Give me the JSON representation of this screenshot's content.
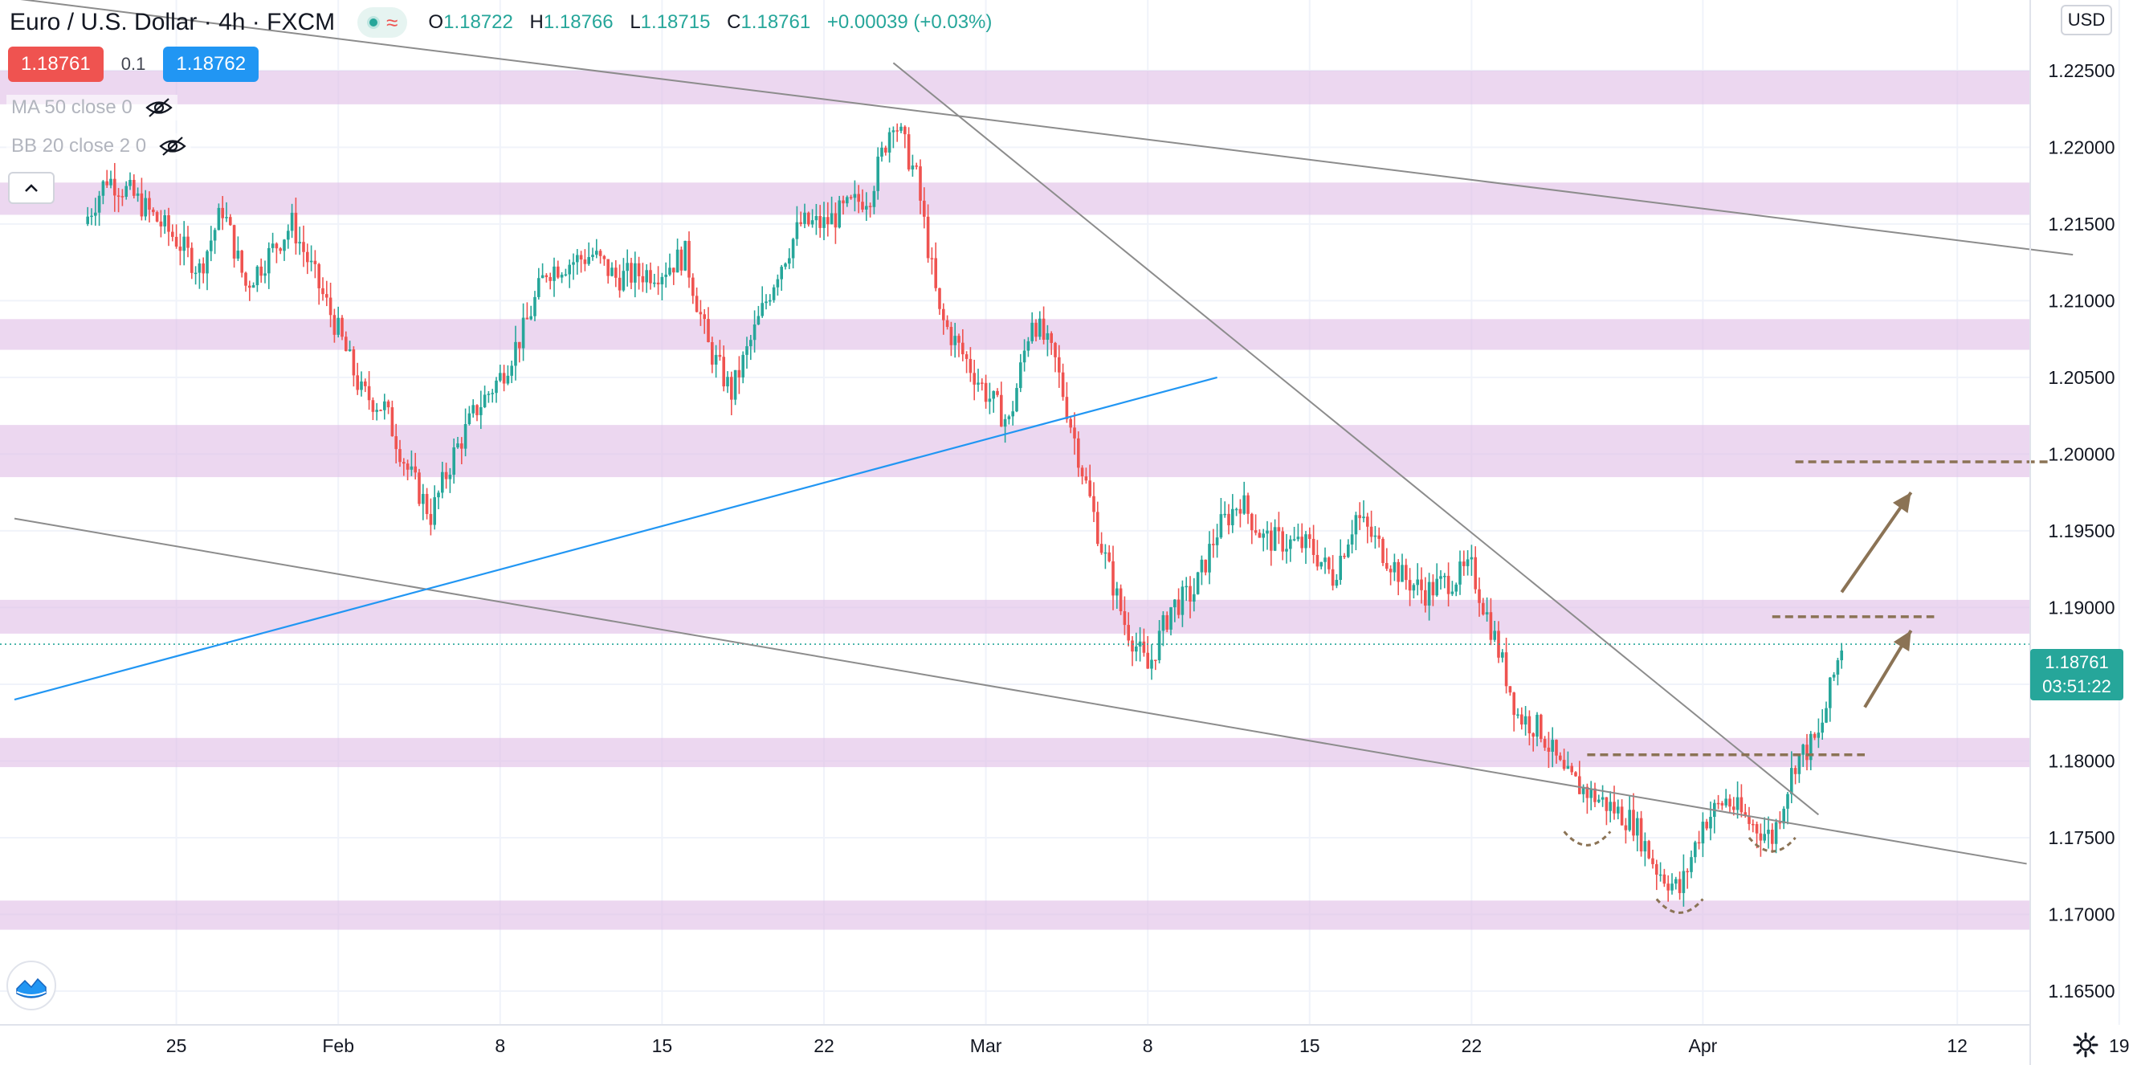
{
  "header": {
    "symbol": "Euro / U.S. Dollar",
    "interval": "4h",
    "exchange": "FXCM",
    "ohlc": {
      "o_label": "O",
      "o": "1.18722",
      "h_label": "H",
      "h": "1.18766",
      "l_label": "L",
      "l": "1.18715",
      "c_label": "C",
      "c": "1.18761",
      "change": "+0.00039 (+0.03%)"
    }
  },
  "trade": {
    "sell_price": "1.18761",
    "spread": "0.1",
    "buy_price": "1.18762"
  },
  "indicators": [
    {
      "label": "MA 50 close 0"
    },
    {
      "label": "BB 20 close 2 0"
    }
  ],
  "currency_button": "USD",
  "last_price": {
    "price": "1.18761",
    "countdown": "03:51:22"
  },
  "icons": {
    "visibility": "eye-off-icon",
    "collapse": "chevron-up-icon",
    "logo": "tradingview-logo-icon",
    "settings": "gear-icon",
    "status": "market-status-icon",
    "wave": "wave-icon"
  },
  "colors": {
    "up": "#26a69a",
    "down": "#ef5350",
    "zone": "#e1bee7",
    "trendline": "#8c8c8c",
    "blue_line": "#2196f3",
    "annotation": "#8b7355"
  },
  "chart_data": {
    "type": "candlestick",
    "title": "Euro / U.S. Dollar",
    "ylim": [
      1.1628,
      1.2296
    ],
    "y_ticks": [
      "1.22500",
      "1.22000",
      "1.21500",
      "1.21000",
      "1.20500",
      "1.20000",
      "1.19500",
      "1.19000",
      "1.18500",
      "1.18000",
      "1.17500",
      "1.17000",
      "1.16500"
    ],
    "x_ticks": [
      {
        "label": "25",
        "date": "2021-01-25"
      },
      {
        "label": "Feb",
        "date": "2021-02-01"
      },
      {
        "label": "8",
        "date": "2021-02-08"
      },
      {
        "label": "15",
        "date": "2021-02-15"
      },
      {
        "label": "22",
        "date": "2021-02-22"
      },
      {
        "label": "Mar",
        "date": "2021-03-01"
      },
      {
        "label": "8",
        "date": "2021-03-08"
      },
      {
        "label": "15",
        "date": "2021-03-15"
      },
      {
        "label": "22",
        "date": "2021-03-22"
      },
      {
        "label": "Apr",
        "date": "2021-04-01"
      },
      {
        "label": "12",
        "date": "2021-04-12"
      },
      {
        "label": "19",
        "date": "2021-04-19"
      }
    ],
    "grid": true,
    "price_path": [
      [
        "2021-01-21",
        1.215
      ],
      [
        "2021-01-22",
        1.218
      ],
      [
        "2021-01-23",
        1.217
      ],
      [
        "2021-01-25",
        1.214
      ],
      [
        "2021-01-26",
        1.212
      ],
      [
        "2021-01-27",
        1.216
      ],
      [
        "2021-01-28",
        1.211
      ],
      [
        "2021-01-29",
        1.213
      ],
      [
        "2021-01-30",
        1.215
      ],
      [
        "2021-02-01",
        1.208
      ],
      [
        "2021-02-02",
        1.204
      ],
      [
        "2021-02-03",
        1.203
      ],
      [
        "2021-02-04",
        1.199
      ],
      [
        "2021-02-05",
        1.196
      ],
      [
        "2021-02-06",
        1.2
      ],
      [
        "2021-02-07",
        1.203
      ],
      [
        "2021-02-08",
        1.205
      ],
      [
        "2021-02-09",
        1.208
      ],
      [
        "2021-02-10",
        1.212
      ],
      [
        "2021-02-11",
        1.2125
      ],
      [
        "2021-02-12",
        1.213
      ],
      [
        "2021-02-13",
        1.2115
      ],
      [
        "2021-02-15",
        1.212
      ],
      [
        "2021-02-16",
        1.213
      ],
      [
        "2021-02-17",
        1.207
      ],
      [
        "2021-02-18",
        1.204
      ],
      [
        "2021-02-19",
        1.208
      ],
      [
        "2021-02-20",
        1.212
      ],
      [
        "2021-02-21",
        1.215
      ],
      [
        "2021-02-22",
        1.215
      ],
      [
        "2021-02-23",
        1.216
      ],
      [
        "2021-02-24",
        1.217
      ],
      [
        "2021-02-25",
        1.222
      ],
      [
        "2021-02-26",
        1.218
      ],
      [
        "2021-02-27",
        1.209
      ],
      [
        "2021-03-01",
        1.204
      ],
      [
        "2021-03-02",
        1.202
      ],
      [
        "2021-03-03",
        1.209
      ],
      [
        "2021-03-04",
        1.206
      ],
      [
        "2021-03-05",
        1.2
      ],
      [
        "2021-03-06",
        1.194
      ],
      [
        "2021-03-07",
        1.189
      ],
      [
        "2021-03-08",
        1.186
      ],
      [
        "2021-03-09",
        1.19
      ],
      [
        "2021-03-10",
        1.191
      ],
      [
        "2021-03-11",
        1.195
      ],
      [
        "2021-03-12",
        1.197
      ],
      [
        "2021-03-13",
        1.1945
      ],
      [
        "2021-03-15",
        1.194
      ],
      [
        "2021-03-16",
        1.192
      ],
      [
        "2021-03-17",
        1.196
      ],
      [
        "2021-03-18",
        1.194
      ],
      [
        "2021-03-19",
        1.192
      ],
      [
        "2021-03-20",
        1.191
      ],
      [
        "2021-03-22",
        1.1925
      ],
      [
        "2021-03-23",
        1.188
      ],
      [
        "2021-03-24",
        1.183
      ],
      [
        "2021-03-25",
        1.182
      ],
      [
        "2021-03-26",
        1.179
      ],
      [
        "2021-03-27",
        1.178
      ],
      [
        "2021-03-28",
        1.177
      ],
      [
        "2021-03-29",
        1.176
      ],
      [
        "2021-03-30",
        1.173
      ],
      [
        "2021-03-31",
        1.1715
      ],
      [
        "2021-04-01",
        1.176
      ],
      [
        "2021-04-02",
        1.1775
      ],
      [
        "2021-04-03",
        1.176
      ],
      [
        "2021-04-04",
        1.175
      ],
      [
        "2021-04-05",
        1.18
      ],
      [
        "2021-04-06",
        1.1815
      ],
      [
        "2021-04-07",
        1.1876
      ]
    ],
    "zones": [
      [
        1.2228,
        1.225
      ],
      [
        1.2156,
        1.2177
      ],
      [
        1.2068,
        1.2088
      ],
      [
        1.1985,
        1.2019
      ],
      [
        1.1883,
        1.1905
      ],
      [
        1.1796,
        1.1815
      ],
      [
        1.169,
        1.1709
      ]
    ],
    "trendlines": [
      {
        "from": [
          "2021-01-18",
          1.2297
        ],
        "to": [
          "2021-04-17",
          1.213
        ]
      },
      {
        "from": [
          "2021-01-18",
          1.1958
        ],
        "to": [
          "2021-04-15",
          1.1733
        ]
      },
      {
        "from": [
          "2021-02-25",
          1.2255
        ],
        "to": [
          "2021-04-06",
          1.1765
        ]
      }
    ],
    "blue_line": {
      "from": [
        "2021-01-18",
        1.184
      ],
      "to": [
        "2021-03-11",
        1.205
      ]
    },
    "dashed_levels": [
      {
        "from": "2021-04-05",
        "to": "2021-04-16",
        "price": 1.1995
      },
      {
        "from": "2021-04-04",
        "to": "2021-04-11",
        "price": 1.1894
      },
      {
        "from": "2021-03-27",
        "to": "2021-04-08",
        "price": 1.1804
      }
    ],
    "arrows": [
      {
        "from": [
          "2021-04-07",
          1.191
        ],
        "to": [
          "2021-04-10",
          1.1975
        ]
      },
      {
        "from": [
          "2021-04-08",
          1.1835
        ],
        "to": [
          "2021-04-10",
          1.1885
        ]
      }
    ],
    "arcs": [
      {
        "from": [
          "2021-03-26",
          1.1754
        ],
        "to": [
          "2021-03-28",
          1.1754
        ]
      },
      {
        "from": [
          "2021-03-30",
          1.171
        ],
        "to": [
          "2021-04-01",
          1.171
        ]
      },
      {
        "from": [
          "2021-04-03",
          1.175
        ],
        "to": [
          "2021-04-05",
          1.175
        ]
      }
    ]
  }
}
